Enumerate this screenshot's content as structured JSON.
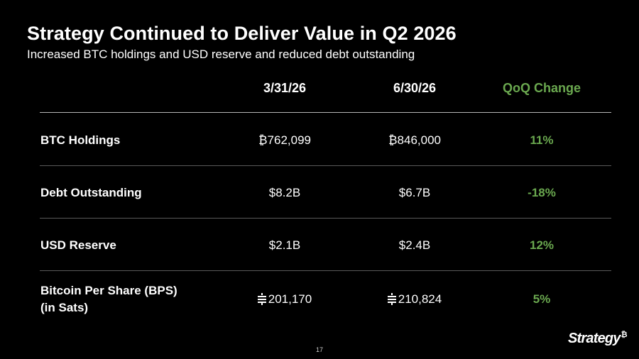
{
  "slide": {
    "title": "Strategy Continued to Deliver Value in Q2 2026",
    "subtitle": "Increased BTC holdings and USD reserve and reduced debt outstanding",
    "page_number": "17",
    "logo_text": "Strategy",
    "logo_mark": "₿"
  },
  "table": {
    "headers": [
      "3/31/26",
      "6/30/26",
      "QoQ Change"
    ],
    "rows": [
      {
        "label": "BTC Holdings",
        "q1": "₿762,099",
        "q2": "₿846,000",
        "change": "11%"
      },
      {
        "label": "Debt Outstanding",
        "q1": "$8.2B",
        "q2": "$6.7B",
        "change": "-18%"
      },
      {
        "label": "USD Reserve",
        "q1": "$2.1B",
        "q2": "$2.4B",
        "change": "12%"
      },
      {
        "label_line1": "Bitcoin Per Share (BPS)",
        "label_line2": "(in Sats)",
        "q1": "201,170",
        "q2": "210,824",
        "change": "5%",
        "unit_icon": "satoshi-icon"
      }
    ]
  },
  "colors": {
    "background": "#000000",
    "text": "#ffffff",
    "accent_green": "#6aa84f",
    "divider": "#5a5a5a"
  }
}
